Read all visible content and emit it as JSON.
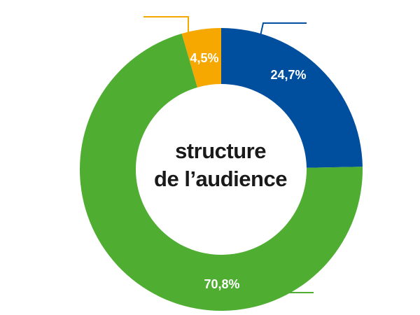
{
  "chart_data": {
    "type": "pie",
    "variant": "donut",
    "center_title": [
      "structure",
      "de l’audience"
    ],
    "slices": [
      {
        "label": "24,7%",
        "value": 24.7,
        "color": "#004f9f"
      },
      {
        "label": "70,8%",
        "value": 70.8,
        "color": "#4fae32"
      },
      {
        "label": "4,5%",
        "value": 4.5,
        "color": "#f6a800"
      }
    ],
    "legend": "none"
  }
}
